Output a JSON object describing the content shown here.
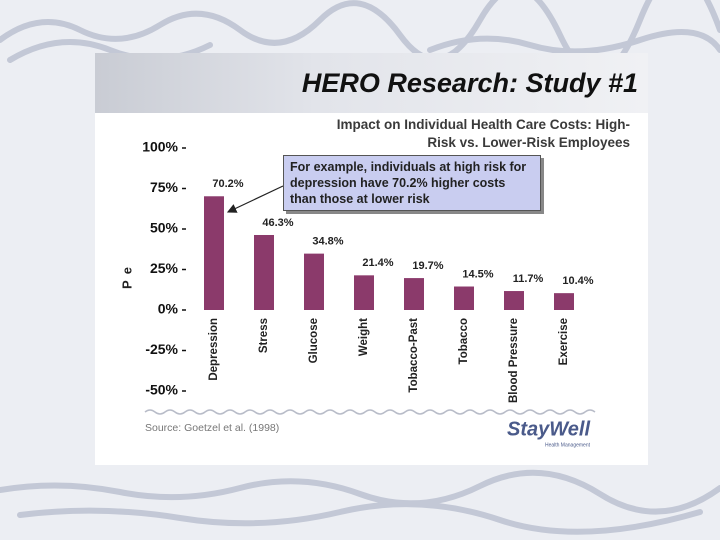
{
  "slide_title": "HERO Research: Study #1",
  "chart_data": {
    "type": "bar",
    "title": "Impact on Individual Health Care Costs: High-Risk vs. Lower-Risk Employees",
    "ylabel": "Pe",
    "categories": [
      "Depression",
      "Stress",
      "Glucose",
      "Weight",
      "Tobacco-Past",
      "Tobacco",
      "Blood Pressure",
      "Exercise"
    ],
    "values": [
      70.2,
      46.3,
      34.8,
      21.4,
      19.7,
      14.5,
      11.7,
      10.4
    ],
    "value_labels": [
      "70.2%",
      "46.3%",
      "34.8%",
      "21.4%",
      "19.7%",
      "14.5%",
      "11.7%",
      "10.4%"
    ],
    "color": "#8b3a6b",
    "ylim": [
      -50,
      100
    ],
    "yticks": [
      {
        "value": 100,
        "label": "100%"
      },
      {
        "value": 75,
        "label": "75%"
      },
      {
        "value": 50,
        "label": "50%"
      },
      {
        "value": 25,
        "label": "25%"
      },
      {
        "value": 0,
        "label": "0%"
      },
      {
        "value": -25,
        "label": "-25%"
      },
      {
        "value": -50,
        "label": "-50%"
      }
    ],
    "annotation": "For example, individuals at high risk for depression have 70.2% higher costs than those at lower risk"
  },
  "source": "Source: Goetzel et al. (1998)",
  "logo": {
    "name": "StayWell",
    "tagline": "Health Management"
  }
}
